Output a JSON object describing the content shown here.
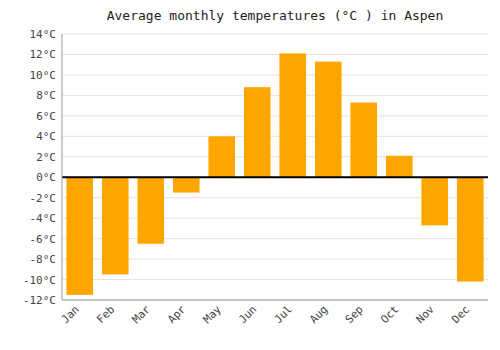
{
  "chart_data": {
    "type": "bar",
    "title": "Average monthly temperatures (°C ) in Aspen",
    "categories": [
      "Jan",
      "Feb",
      "Mar",
      "Apr",
      "May",
      "Jun",
      "Jul",
      "Aug",
      "Sep",
      "Oct",
      "Nov",
      "Dec"
    ],
    "values": [
      -11.5,
      -9.5,
      -6.5,
      -1.5,
      4.0,
      8.8,
      12.1,
      11.3,
      7.3,
      2.1,
      -4.7,
      -10.2
    ],
    "color": "#FFA500",
    "ylim": [
      -12,
      14
    ],
    "yticks": [
      {
        "value": -12,
        "label": "-12°C"
      },
      {
        "value": -10,
        "label": "-10°C"
      },
      {
        "value": -8,
        "label": "-8°C"
      },
      {
        "value": -6,
        "label": "-6°C"
      },
      {
        "value": -4,
        "label": "-4°C"
      },
      {
        "value": -2,
        "label": "-2°C"
      },
      {
        "value": 0,
        "label": "0°C"
      },
      {
        "value": 2,
        "label": "2°C"
      },
      {
        "value": 4,
        "label": "4°C"
      },
      {
        "value": 6,
        "label": "6°C"
      },
      {
        "value": 8,
        "label": "8°C"
      },
      {
        "value": 10,
        "label": "10°C"
      },
      {
        "value": 12,
        "label": "12°C"
      },
      {
        "value": 14,
        "label": "14°C"
      }
    ],
    "grid": true
  }
}
